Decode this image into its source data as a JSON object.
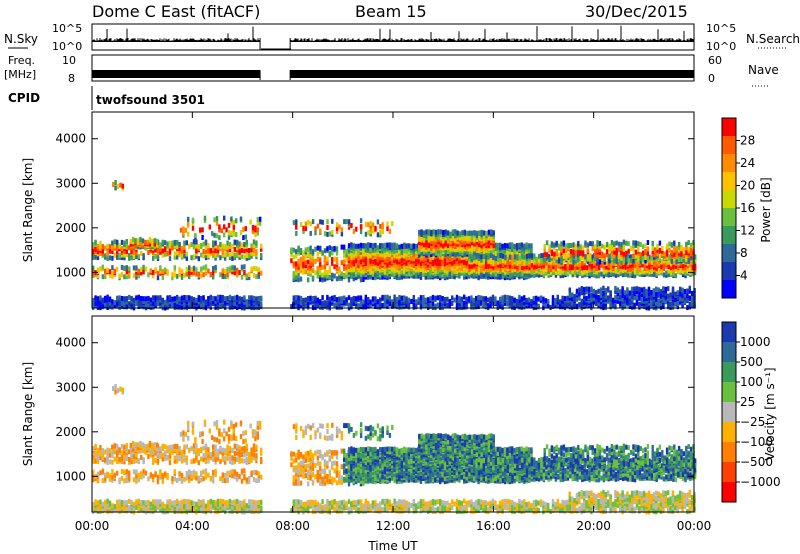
{
  "header": {
    "station": "Dome C East (fitACF)",
    "beam": "Beam 15",
    "date": "30/Dec/2015"
  },
  "top_panels": {
    "nsky_label": "N.Sky",
    "nsky_ticks": [
      "10^5",
      "10^0"
    ],
    "nsearch_label": "N.Search",
    "nsearch_ticks": [
      "10^5",
      "10^0"
    ],
    "freq_label_1": "Freq.",
    "freq_label_2": "[MHz]",
    "freq_ticks": [
      "10",
      "8"
    ],
    "nave_label": "Nave",
    "nave_ticks": [
      "60",
      "0"
    ],
    "cpid_label": "CPID",
    "cpid_name": "twofsound 3501"
  },
  "chart_data": [
    {
      "type": "heatmap",
      "name": "power",
      "ylabel": "Slant Range [km]",
      "y_ticks": [
        1000,
        2000,
        3000,
        4000
      ],
      "ylim": [
        200,
        4600
      ],
      "xlim_hours": [
        0,
        24
      ],
      "data_gap_hours": [
        6.7,
        7.9
      ],
      "colorbar": {
        "label": "Power [dB]",
        "ticks": [
          "28",
          "24",
          "20",
          "16",
          "12",
          "8",
          "4"
        ],
        "colors": [
          "#ff0000",
          "#ff5a00",
          "#ff8c00",
          "#ffc000",
          "#c8d800",
          "#6cc040",
          "#3a9a5c",
          "#2d6a9a",
          "#1a3ab0",
          "#0000ff"
        ]
      }
    },
    {
      "type": "heatmap",
      "name": "velocity",
      "ylabel": "Slant Range [km]",
      "y_ticks": [
        1000,
        2000,
        3000,
        4000
      ],
      "ylim": [
        200,
        4600
      ],
      "xlim_hours": [
        0,
        24
      ],
      "data_gap_hours": [
        6.7,
        7.9
      ],
      "colorbar": {
        "label": "Velocity [m s⁻¹]",
        "ticks": [
          "1000",
          "500",
          "100",
          "25",
          "−25",
          "−100",
          "−500",
          "−1000"
        ],
        "colors": [
          "#1a3ab0",
          "#2d6a9a",
          "#3a9a5c",
          "#6cc040",
          "#b8b8b8",
          "#ffb000",
          "#ff8000",
          "#ff4000",
          "#ff0000"
        ]
      }
    }
  ],
  "xaxis": {
    "tick_labels": [
      "00:00",
      "04:00",
      "08:00",
      "12:00",
      "16:00",
      "20:00",
      "00:00"
    ],
    "label": "Time UT"
  }
}
